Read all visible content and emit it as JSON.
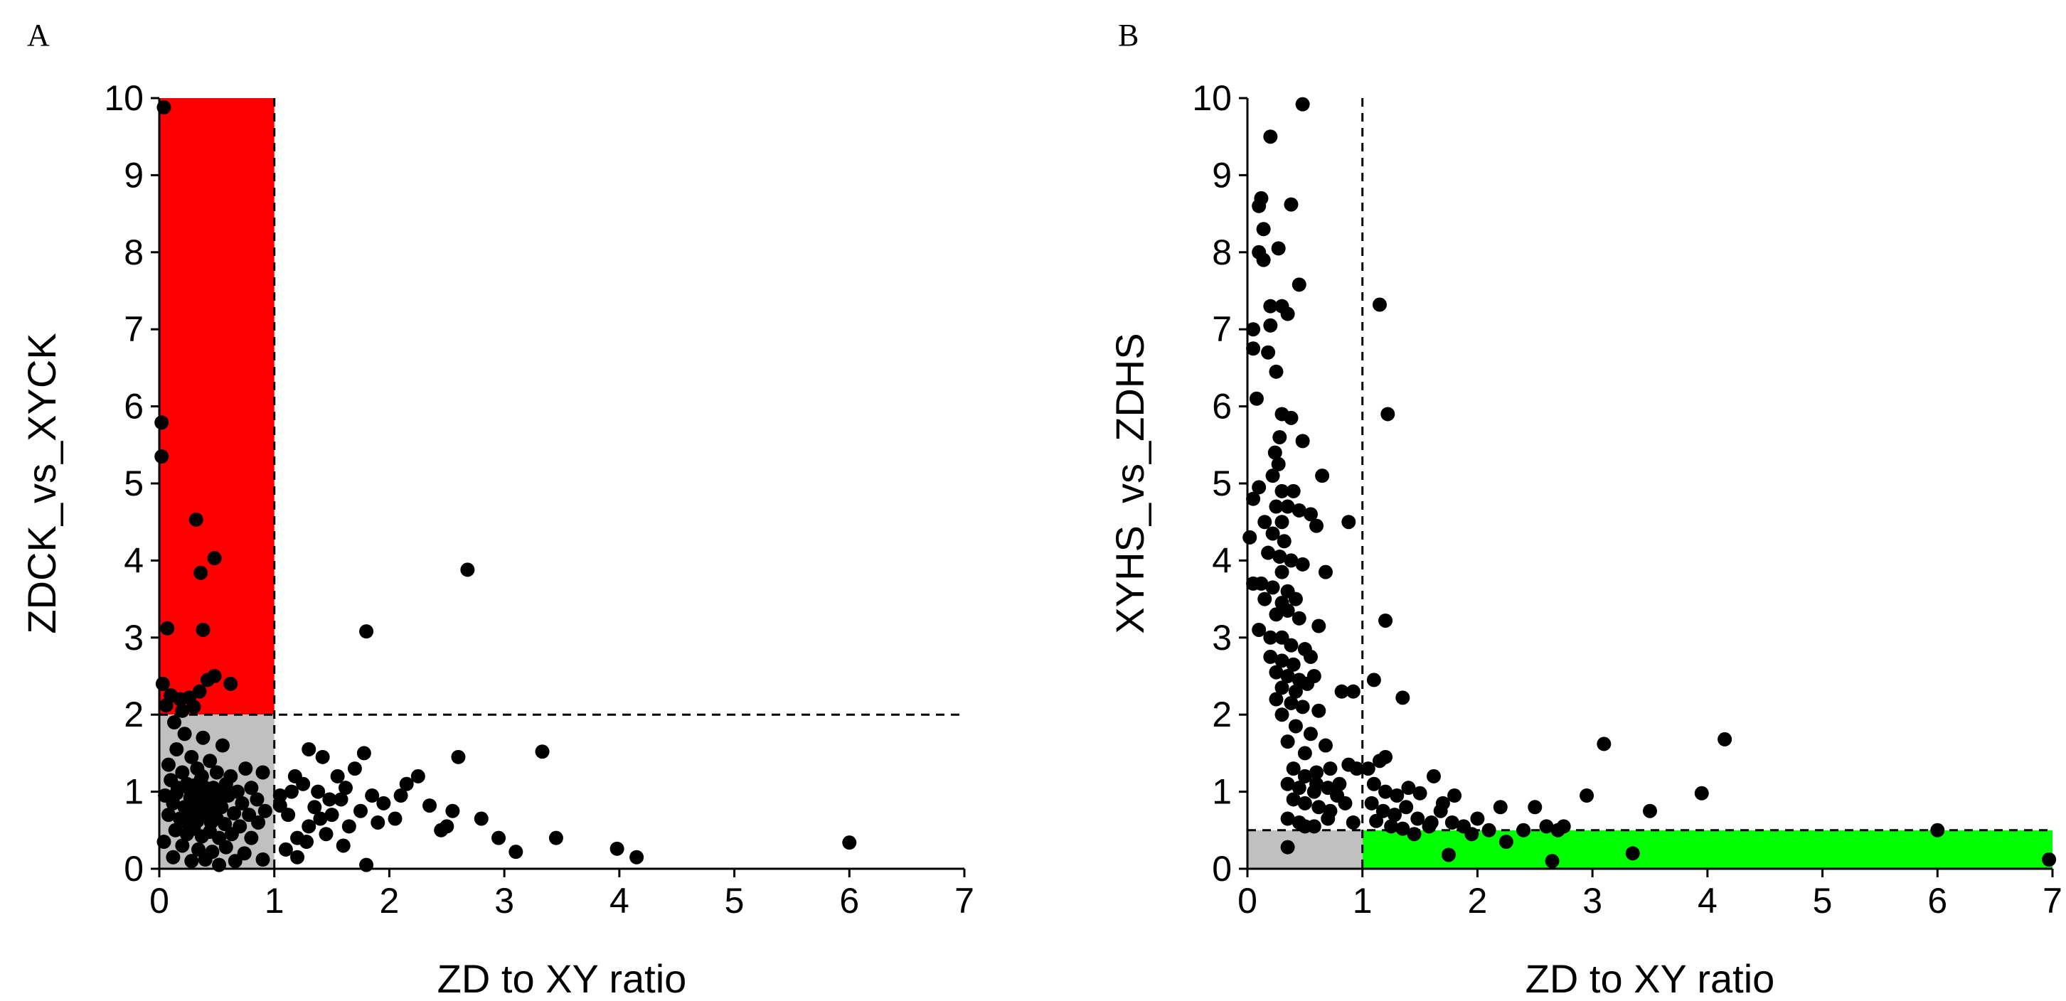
{
  "chart_data": [
    {
      "panel": "A",
      "type": "scatter",
      "xlabel": "ZD to XY ratio",
      "ylabel": "ZDCK_vs_XYCK",
      "xlim": [
        0,
        7
      ],
      "ylim": [
        0,
        10
      ],
      "xticks": [
        "0",
        "1",
        "2",
        "3",
        "4",
        "5",
        "6",
        "7"
      ],
      "yticks": [
        "0",
        "1",
        "2",
        "3",
        "4",
        "5",
        "6",
        "7",
        "8",
        "9",
        "10"
      ],
      "thresholds": {
        "x": 1,
        "y": 2
      },
      "colors": {
        "highlight": "#ff0000",
        "baseline": "#c0c0c0",
        "point": "#000000"
      },
      "highlight_region": {
        "x": [
          0,
          1
        ],
        "y": [
          2,
          10
        ]
      },
      "baseline_region": {
        "x": [
          0,
          1
        ],
        "y": [
          0,
          2
        ]
      },
      "points": [
        [
          0.04,
          9.88
        ],
        [
          0.02,
          5.79
        ],
        [
          0.02,
          5.35
        ],
        [
          0.32,
          4.53
        ],
        [
          0.48,
          4.03
        ],
        [
          0.36,
          3.84
        ],
        [
          0.07,
          3.12
        ],
        [
          0.38,
          3.1
        ],
        [
          0.03,
          2.4
        ],
        [
          0.1,
          2.25
        ],
        [
          0.18,
          2.2
        ],
        [
          0.42,
          2.45
        ],
        [
          0.48,
          2.5
        ],
        [
          0.62,
          2.4
        ],
        [
          0.35,
          2.3
        ],
        [
          0.26,
          2.22
        ],
        [
          0.06,
          2.12
        ],
        [
          0.2,
          2.05
        ],
        [
          0.3,
          2.1
        ],
        [
          0.13,
          1.9
        ],
        [
          0.22,
          1.75
        ],
        [
          0.38,
          1.7
        ],
        [
          0.55,
          1.6
        ],
        [
          0.15,
          1.55
        ],
        [
          0.28,
          1.45
        ],
        [
          0.44,
          1.4
        ],
        [
          0.08,
          1.35
        ],
        [
          0.2,
          1.25
        ],
        [
          0.33,
          1.3
        ],
        [
          0.5,
          1.25
        ],
        [
          0.62,
          1.2
        ],
        [
          0.75,
          1.3
        ],
        [
          0.9,
          1.25
        ],
        [
          0.1,
          1.15
        ],
        [
          0.24,
          1.1
        ],
        [
          0.36,
          1.15
        ],
        [
          0.47,
          1.05
        ],
        [
          0.58,
          1.1
        ],
        [
          0.68,
          1.0
        ],
        [
          0.8,
          1.05
        ],
        [
          0.05,
          0.95
        ],
        [
          0.15,
          0.98
        ],
        [
          0.27,
          0.92
        ],
        [
          0.31,
          1.0
        ],
        [
          0.39,
          0.9
        ],
        [
          0.43,
          0.96
        ],
        [
          0.52,
          0.88
        ],
        [
          0.6,
          0.95
        ],
        [
          0.72,
          0.85
        ],
        [
          0.85,
          0.9
        ],
        [
          0.12,
          0.85
        ],
        [
          0.22,
          0.8
        ],
        [
          0.29,
          0.85
        ],
        [
          0.35,
          0.78
        ],
        [
          0.41,
          0.82
        ],
        [
          0.46,
          0.75
        ],
        [
          0.54,
          0.8
        ],
        [
          0.65,
          0.72
        ],
        [
          0.78,
          0.7
        ],
        [
          0.92,
          0.75
        ],
        [
          0.08,
          0.7
        ],
        [
          0.18,
          0.65
        ],
        [
          0.26,
          0.7
        ],
        [
          0.33,
          0.62
        ],
        [
          0.38,
          0.68
        ],
        [
          0.45,
          0.6
        ],
        [
          0.5,
          0.65
        ],
        [
          0.57,
          0.58
        ],
        [
          0.7,
          0.55
        ],
        [
          0.86,
          0.6
        ],
        [
          0.14,
          0.5
        ],
        [
          0.24,
          0.45
        ],
        [
          0.3,
          0.52
        ],
        [
          0.37,
          0.42
        ],
        [
          0.44,
          0.48
        ],
        [
          0.52,
          0.4
        ],
        [
          0.63,
          0.45
        ],
        [
          0.8,
          0.4
        ],
        [
          0.04,
          0.35
        ],
        [
          0.2,
          0.3
        ],
        [
          0.34,
          0.25
        ],
        [
          0.46,
          0.22
        ],
        [
          0.58,
          0.28
        ],
        [
          0.74,
          0.2
        ],
        [
          0.12,
          0.15
        ],
        [
          0.28,
          0.1
        ],
        [
          0.4,
          0.12
        ],
        [
          0.52,
          0.05
        ],
        [
          0.66,
          0.1
        ],
        [
          0.9,
          0.12
        ],
        [
          0.3,
          1.08
        ],
        [
          0.34,
          0.95
        ],
        [
          0.27,
          1.02
        ],
        [
          0.4,
          1.05
        ],
        [
          0.42,
          0.86
        ],
        [
          0.37,
          1.2
        ],
        [
          0.25,
          0.58
        ],
        [
          0.49,
          0.9
        ],
        [
          0.16,
          1.05
        ],
        [
          0.55,
          1.0
        ],
        [
          1.05,
          0.82
        ],
        [
          1.12,
          0.7
        ],
        [
          1.18,
          1.2
        ],
        [
          1.25,
          1.1
        ],
        [
          1.3,
          1.55
        ],
        [
          1.38,
          1.0
        ],
        [
          1.42,
          1.45
        ],
        [
          1.48,
          0.9
        ],
        [
          1.55,
          1.2
        ],
        [
          1.62,
          1.05
        ],
        [
          1.7,
          1.3
        ],
        [
          1.78,
          1.5
        ],
        [
          1.85,
          0.95
        ],
        [
          1.2,
          0.4
        ],
        [
          1.3,
          0.55
        ],
        [
          1.4,
          0.65
        ],
        [
          1.5,
          0.7
        ],
        [
          1.65,
          0.55
        ],
        [
          1.75,
          0.75
        ],
        [
          1.95,
          0.85
        ],
        [
          2.05,
          0.65
        ],
        [
          2.15,
          1.1
        ],
        [
          2.25,
          1.2
        ],
        [
          2.35,
          0.82
        ],
        [
          2.45,
          0.5
        ],
        [
          2.55,
          0.75
        ],
        [
          2.6,
          1.45
        ],
        [
          2.8,
          0.65
        ],
        [
          2.95,
          0.4
        ],
        [
          3.1,
          0.22
        ],
        [
          1.1,
          0.25
        ],
        [
          1.2,
          0.15
        ],
        [
          1.6,
          0.3
        ],
        [
          1.8,
          0.05
        ],
        [
          1.8,
          3.08
        ],
        [
          2.68,
          3.88
        ],
        [
          3.33,
          1.52
        ],
        [
          3.45,
          0.4
        ],
        [
          3.98,
          0.26
        ],
        [
          4.15,
          0.15
        ],
        [
          6.0,
          0.34
        ],
        [
          1.15,
          1.0
        ],
        [
          1.35,
          0.8
        ],
        [
          1.45,
          0.45
        ],
        [
          1.05,
          0.95
        ],
        [
          1.28,
          0.35
        ],
        [
          1.58,
          0.9
        ],
        [
          2.1,
          0.95
        ],
        [
          2.5,
          0.55
        ],
        [
          1.9,
          0.6
        ]
      ]
    },
    {
      "panel": "B",
      "type": "scatter",
      "xlabel": "ZD to XY ratio",
      "ylabel": "XYHS_vs_ZDHS",
      "xlim": [
        0,
        7
      ],
      "ylim": [
        0,
        10
      ],
      "xticks": [
        "0",
        "1",
        "2",
        "3",
        "4",
        "5",
        "6",
        "7"
      ],
      "yticks": [
        "0",
        "1",
        "2",
        "3",
        "4",
        "5",
        "6",
        "7",
        "8",
        "9",
        "10"
      ],
      "thresholds": {
        "x": 1,
        "y": 0.5
      },
      "colors": {
        "highlight": "#00ff00",
        "baseline": "#c0c0c0",
        "point": "#000000"
      },
      "highlight_region": {
        "x": [
          1,
          7
        ],
        "y": [
          0,
          0.5
        ]
      },
      "baseline_region": {
        "x": [
          0,
          1
        ],
        "y": [
          0,
          0.5
        ]
      },
      "points": [
        [
          0.48,
          9.92
        ],
        [
          0.2,
          9.5
        ],
        [
          0.12,
          8.7
        ],
        [
          0.1,
          8.6
        ],
        [
          0.38,
          8.62
        ],
        [
          0.14,
          8.3
        ],
        [
          0.1,
          8.0
        ],
        [
          0.27,
          8.05
        ],
        [
          0.14,
          7.9
        ],
        [
          0.45,
          7.58
        ],
        [
          0.2,
          7.3
        ],
        [
          0.3,
          7.3
        ],
        [
          0.35,
          7.2
        ],
        [
          0.05,
          7.0
        ],
        [
          0.2,
          7.05
        ],
        [
          0.05,
          6.75
        ],
        [
          0.18,
          6.7
        ],
        [
          0.25,
          6.45
        ],
        [
          0.08,
          6.1
        ],
        [
          0.3,
          5.9
        ],
        [
          0.38,
          5.85
        ],
        [
          0.28,
          5.6
        ],
        [
          0.48,
          5.55
        ],
        [
          0.24,
          5.4
        ],
        [
          0.27,
          5.25
        ],
        [
          0.22,
          5.1
        ],
        [
          0.65,
          5.1
        ],
        [
          0.1,
          4.95
        ],
        [
          0.3,
          4.9
        ],
        [
          0.4,
          4.9
        ],
        [
          0.05,
          4.8
        ],
        [
          0.25,
          4.7
        ],
        [
          0.35,
          4.7
        ],
        [
          0.45,
          4.65
        ],
        [
          0.55,
          4.6
        ],
        [
          0.15,
          4.5
        ],
        [
          0.3,
          4.5
        ],
        [
          0.6,
          4.45
        ],
        [
          0.88,
          4.5
        ],
        [
          0.22,
          4.35
        ],
        [
          0.32,
          4.25
        ],
        [
          0.02,
          4.3
        ],
        [
          0.18,
          4.1
        ],
        [
          0.28,
          4.05
        ],
        [
          0.38,
          4.0
        ],
        [
          0.3,
          3.85
        ],
        [
          0.48,
          3.95
        ],
        [
          0.68,
          3.85
        ],
        [
          0.05,
          3.7
        ],
        [
          0.12,
          3.7
        ],
        [
          0.22,
          3.65
        ],
        [
          0.35,
          3.6
        ],
        [
          0.15,
          3.5
        ],
        [
          0.3,
          3.45
        ],
        [
          0.42,
          3.5
        ],
        [
          0.25,
          3.3
        ],
        [
          0.35,
          3.35
        ],
        [
          0.45,
          3.25
        ],
        [
          0.62,
          3.15
        ],
        [
          0.1,
          3.1
        ],
        [
          0.2,
          3.0
        ],
        [
          0.3,
          3.0
        ],
        [
          0.38,
          2.9
        ],
        [
          0.5,
          2.85
        ],
        [
          0.2,
          2.75
        ],
        [
          0.3,
          2.7
        ],
        [
          0.4,
          2.65
        ],
        [
          0.55,
          2.75
        ],
        [
          0.25,
          2.55
        ],
        [
          0.35,
          2.5
        ],
        [
          0.45,
          2.45
        ],
        [
          0.58,
          2.5
        ],
        [
          0.3,
          2.35
        ],
        [
          0.42,
          2.3
        ],
        [
          0.52,
          2.4
        ],
        [
          0.82,
          2.3
        ],
        [
          0.92,
          2.3
        ],
        [
          0.25,
          2.2
        ],
        [
          0.38,
          2.15
        ],
        [
          0.48,
          2.1
        ],
        [
          0.3,
          2.0
        ],
        [
          0.62,
          2.05
        ],
        [
          0.42,
          1.85
        ],
        [
          0.55,
          1.75
        ],
        [
          0.35,
          1.65
        ],
        [
          0.68,
          1.6
        ],
        [
          0.5,
          1.5
        ],
        [
          0.4,
          1.3
        ],
        [
          0.5,
          1.2
        ],
        [
          0.6,
          1.25
        ],
        [
          0.72,
          1.3
        ],
        [
          0.35,
          1.1
        ],
        [
          0.45,
          1.05
        ],
        [
          0.58,
          1.0
        ],
        [
          0.7,
          1.05
        ],
        [
          0.8,
          1.1
        ],
        [
          0.4,
          0.9
        ],
        [
          0.5,
          0.85
        ],
        [
          0.62,
          0.8
        ],
        [
          0.72,
          0.75
        ],
        [
          0.85,
          0.85
        ],
        [
          0.35,
          0.65
        ],
        [
          0.45,
          0.6
        ],
        [
          0.58,
          0.55
        ],
        [
          0.7,
          0.65
        ],
        [
          0.92,
          0.6
        ],
        [
          0.35,
          0.28
        ],
        [
          0.5,
          0.55
        ],
        [
          0.6,
          1.1
        ],
        [
          0.78,
          0.95
        ],
        [
          0.88,
          1.35
        ],
        [
          0.95,
          1.3
        ],
        [
          1.15,
          7.32
        ],
        [
          1.22,
          5.9
        ],
        [
          1.2,
          3.22
        ],
        [
          1.35,
          2.22
        ],
        [
          1.1,
          2.45
        ],
        [
          1.05,
          1.3
        ],
        [
          1.15,
          1.4
        ],
        [
          1.2,
          1.45
        ],
        [
          1.1,
          1.1
        ],
        [
          1.2,
          1.0
        ],
        [
          1.3,
          0.95
        ],
        [
          1.4,
          1.05
        ],
        [
          1.5,
          0.98
        ],
        [
          1.62,
          1.2
        ],
        [
          1.7,
          0.85
        ],
        [
          1.8,
          0.95
        ],
        [
          1.08,
          0.85
        ],
        [
          1.18,
          0.75
        ],
        [
          1.28,
          0.7
        ],
        [
          1.38,
          0.8
        ],
        [
          1.48,
          0.65
        ],
        [
          1.58,
          0.55
        ],
        [
          1.68,
          0.75
        ],
        [
          1.78,
          0.6
        ],
        [
          1.88,
          0.55
        ],
        [
          2.0,
          0.65
        ],
        [
          2.1,
          0.5
        ],
        [
          2.2,
          0.8
        ],
        [
          2.4,
          0.5
        ],
        [
          2.5,
          0.8
        ],
        [
          2.6,
          0.55
        ],
        [
          2.7,
          0.5
        ],
        [
          2.75,
          0.55
        ],
        [
          2.95,
          0.95
        ],
        [
          3.1,
          1.62
        ],
        [
          3.5,
          0.75
        ],
        [
          3.95,
          0.98
        ],
        [
          4.15,
          1.68
        ],
        [
          6.0,
          0.5
        ],
        [
          6.97,
          0.12
        ],
        [
          3.35,
          0.2
        ],
        [
          2.65,
          0.1
        ],
        [
          1.75,
          0.18
        ],
        [
          1.45,
          0.45
        ],
        [
          1.25,
          0.55
        ],
        [
          1.35,
          0.52
        ],
        [
          2.25,
          0.35
        ],
        [
          1.95,
          0.45
        ],
        [
          1.6,
          0.6
        ],
        [
          1.12,
          0.62
        ]
      ]
    }
  ]
}
